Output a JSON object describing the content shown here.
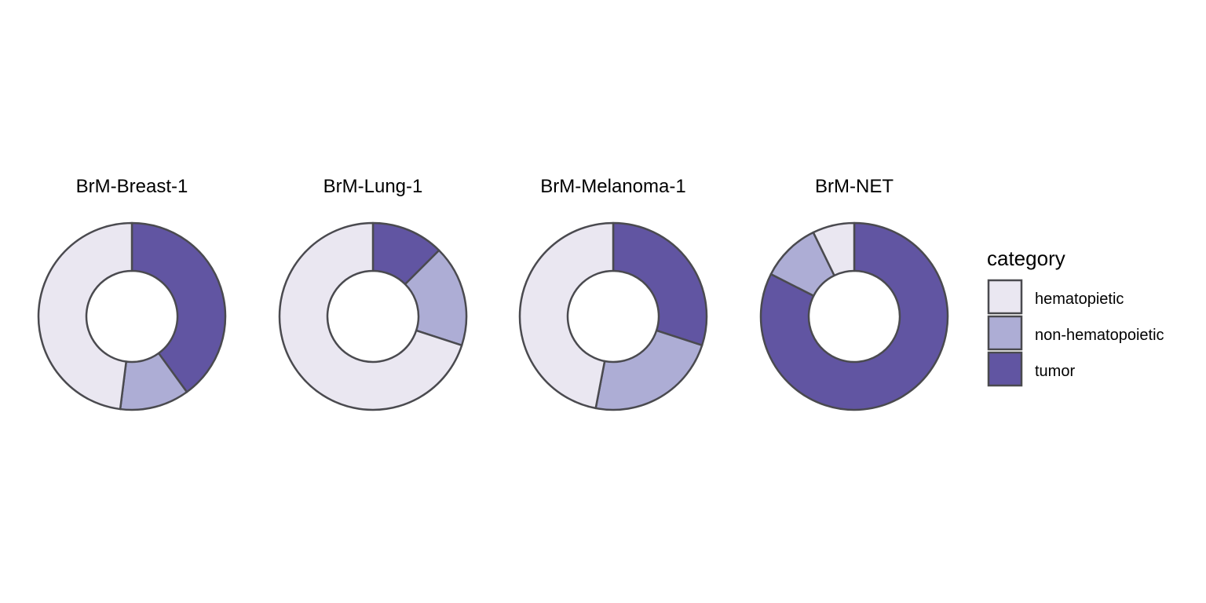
{
  "chart_data": {
    "type": "donut",
    "legend": {
      "title": "category",
      "placement": "right",
      "entries": [
        {
          "label": "hematopietic",
          "color": "#EAE7F1"
        },
        {
          "label": "non-hematopoietic",
          "color": "#ADADD5"
        },
        {
          "label": "tumor",
          "color": "#6155A2"
        }
      ]
    },
    "categories": [
      "tumor",
      "non-hematopoietic",
      "hematopietic"
    ],
    "colors": {
      "tumor": "#6155A2",
      "non-hematopoietic": "#ADADD5",
      "hematopietic": "#EAE7F1"
    },
    "outline_color": "#4A4A4F",
    "panels": [
      {
        "title": "BrM-Breast-1",
        "values": [
          0.4,
          0.12,
          0.48
        ]
      },
      {
        "title": "BrM-Lung-1",
        "values": [
          0.125,
          0.175,
          0.7
        ]
      },
      {
        "title": "BrM-Melanoma-1",
        "values": [
          0.3,
          0.23,
          0.47
        ]
      },
      {
        "title": "BrM-NET",
        "values": [
          0.8,
          0.1,
          0.07
        ]
      }
    ]
  }
}
